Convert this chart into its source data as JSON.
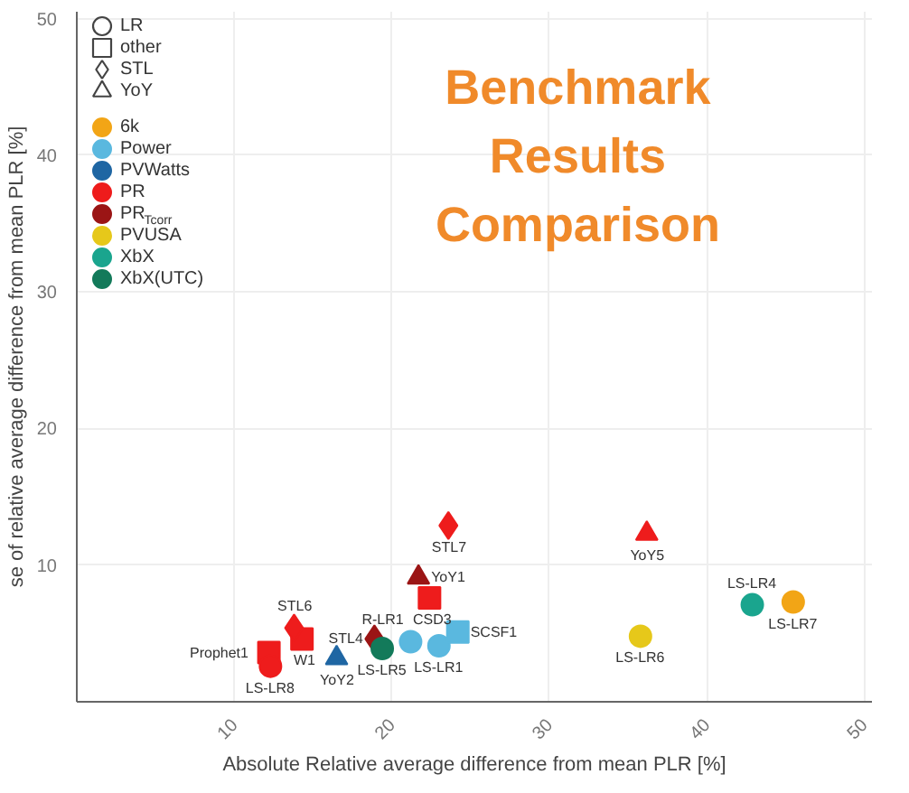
{
  "chart_data": {
    "type": "scatter",
    "title": "Benchmark Results Comparison",
    "xlabel": "Absolute Relative average difference from mean PLR [%]",
    "ylabel": "se of relative average difference from mean PLR [%]",
    "xlim": [
      0,
      50.5
    ],
    "ylim": [
      0,
      50.5
    ],
    "xticks": [
      10,
      20,
      30,
      40,
      50
    ],
    "yticks": [
      10,
      20,
      30,
      40,
      50
    ],
    "grid": true,
    "legend": "top left",
    "series": [
      {
        "name": "LR",
        "marker": "circle"
      },
      {
        "name": "other",
        "marker": "square"
      },
      {
        "name": "STL",
        "marker": "diamond"
      },
      {
        "name": "YoY",
        "marker": "triangle"
      },
      {
        "name": "6k",
        "color": "#f2a516",
        "marker": [
          "circle"
        ],
        "x": [
          45.5
        ],
        "values": [
          7.3
        ]
      },
      {
        "name": "Power",
        "color": "#5ab8df",
        "marker": [
          "circle",
          "circle",
          "square"
        ],
        "x": [
          21.2,
          23.0,
          24.2
        ],
        "values": [
          4.4,
          4.1,
          5.1
        ]
      },
      {
        "name": "PVWatts",
        "color": "#1f66a3",
        "marker": [
          "triangle"
        ],
        "x": [
          16.5
        ],
        "values": [
          3.2
        ]
      },
      {
        "name": "PR",
        "color": "#ee1c1c",
        "marker": [
          "square",
          "square",
          "square",
          "circle",
          "diamond",
          "diamond",
          "triangle"
        ],
        "x": [
          12.2,
          14.3,
          22.4,
          12.3,
          13.8,
          23.6,
          36.2
        ],
        "values": [
          3.6,
          4.6,
          7.6,
          2.6,
          5.4,
          12.9,
          12.3
        ]
      },
      {
        "name": "PR$_{Tcorr}$",
        "color": "#9b1515",
        "marker": [
          "diamond",
          "triangle"
        ],
        "x": [
          18.9,
          21.7
        ],
        "values": [
          4.6,
          9.1
        ]
      },
      {
        "name": "PVUSA",
        "color": "#e6c81a",
        "marker": [
          "circle"
        ],
        "x": [
          35.8
        ],
        "values": [
          4.8
        ]
      },
      {
        "name": "XbX",
        "color": "#1aa58e",
        "marker": [
          "circle"
        ],
        "x": [
          42.9
        ],
        "values": [
          7.1
        ]
      },
      {
        "name": "XbX(UTC)",
        "color": "#137a5a",
        "marker": [
          "circle"
        ],
        "x": [
          19.4
        ],
        "values": [
          3.9
        ]
      }
    ],
    "annotations": [
      {
        "text": "LS-LR7",
        "x": 45.5,
        "y": 7.3
      },
      {
        "text": "LS-LR4",
        "x": 42.9,
        "y": 7.1
      },
      {
        "text": "LS-LR6",
        "x": 35.8,
        "y": 4.8
      },
      {
        "text": "YoY5",
        "x": 36.2,
        "y": 12.3
      },
      {
        "text": "STL7",
        "x": 23.6,
        "y": 12.9
      },
      {
        "text": "YoY1",
        "x": 21.7,
        "y": 9.1
      },
      {
        "text": "CSD3",
        "x": 22.4,
        "y": 7.6
      },
      {
        "text": "SCSF1",
        "x": 24.2,
        "y": 5.1
      },
      {
        "text": "LS-LR1",
        "x": 23.0,
        "y": 4.1
      },
      {
        "text": "R-LR1",
        "x": 21.2,
        "y": 4.4
      },
      {
        "text": "STL4",
        "x": 18.9,
        "y": 4.6
      },
      {
        "text": "LS-LR5",
        "x": 19.4,
        "y": 3.9
      },
      {
        "text": "YoY2",
        "x": 16.5,
        "y": 3.2
      },
      {
        "text": "W1",
        "x": 14.3,
        "y": 4.6
      },
      {
        "text": "STL6",
        "x": 13.8,
        "y": 5.4
      },
      {
        "text": "Prophet1",
        "x": 12.2,
        "y": 3.6
      },
      {
        "text": "LS-LR8",
        "x": 12.3,
        "y": 2.6
      }
    ]
  }
}
